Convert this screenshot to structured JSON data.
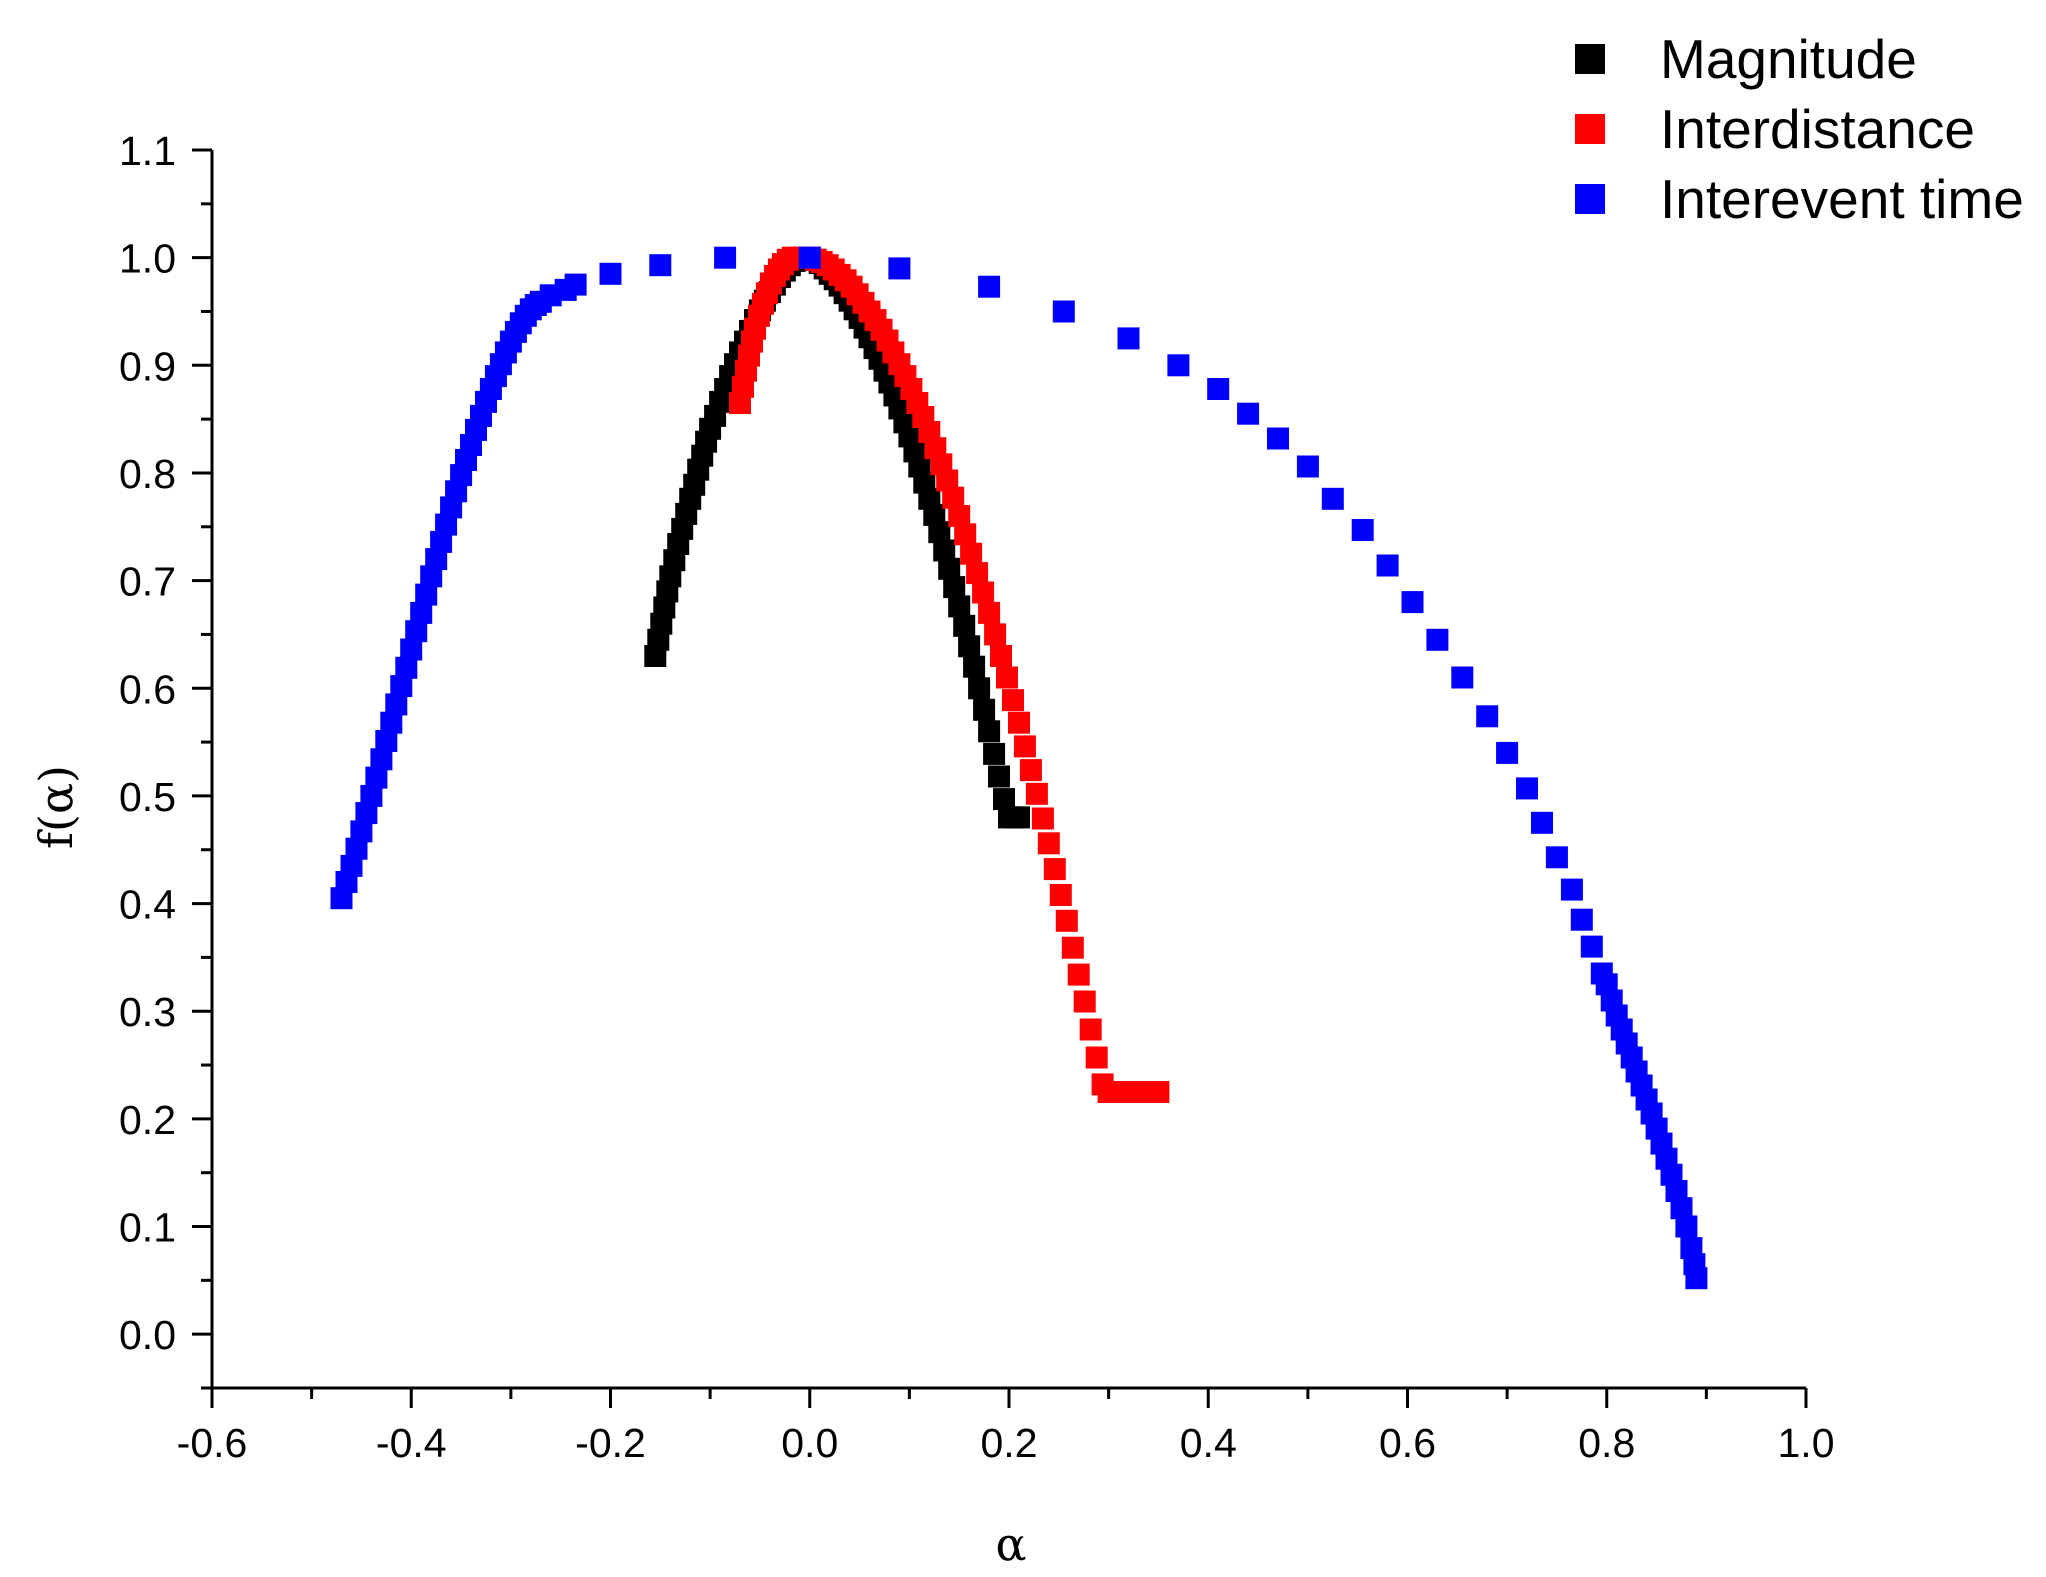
{
  "chart_data": {
    "type": "scatter",
    "xlabel": "α",
    "ylabel": "f(α)",
    "xlim": [
      -0.6,
      1.0
    ],
    "ylim": [
      -0.05,
      1.1
    ],
    "xticks": [
      "-0.6",
      "-0.4",
      "-0.2",
      "0.0",
      "0.2",
      "0.4",
      "0.6",
      "0.8",
      "1.0"
    ],
    "yticks": [
      "0.0",
      "0.1",
      "0.2",
      "0.3",
      "0.4",
      "0.5",
      "0.6",
      "0.7",
      "0.8",
      "0.9",
      "1.0",
      "1.1"
    ],
    "grid": false,
    "legend_position": "top-right",
    "marker": "square",
    "series": [
      {
        "name": "Magnitude",
        "color": "#000000",
        "points": [
          [
            -0.155,
            0.63
          ],
          [
            -0.152,
            0.645
          ],
          [
            -0.149,
            0.66
          ],
          [
            -0.146,
            0.675
          ],
          [
            -0.143,
            0.69
          ],
          [
            -0.14,
            0.704
          ],
          [
            -0.136,
            0.719
          ],
          [
            -0.132,
            0.734
          ],
          [
            -0.128,
            0.748
          ],
          [
            -0.124,
            0.762
          ],
          [
            -0.12,
            0.776
          ],
          [
            -0.116,
            0.789
          ],
          [
            -0.112,
            0.803
          ],
          [
            -0.108,
            0.816
          ],
          [
            -0.104,
            0.829
          ],
          [
            -0.1,
            0.841
          ],
          [
            -0.095,
            0.853
          ],
          [
            -0.09,
            0.866
          ],
          [
            -0.085,
            0.878
          ],
          [
            -0.08,
            0.89
          ],
          [
            -0.075,
            0.901
          ],
          [
            -0.07,
            0.912
          ],
          [
            -0.065,
            0.922
          ],
          [
            -0.06,
            0.932
          ],
          [
            -0.055,
            0.942
          ],
          [
            -0.05,
            0.951
          ],
          [
            -0.045,
            0.96
          ],
          [
            -0.04,
            0.968
          ],
          [
            -0.035,
            0.975
          ],
          [
            -0.03,
            0.982
          ],
          [
            -0.025,
            0.988
          ],
          [
            -0.02,
            0.993
          ],
          [
            -0.015,
            0.997
          ],
          [
            -0.01,
            0.999
          ],
          [
            -0.005,
            1.0
          ],
          [
            0.0,
            1.0
          ],
          [
            0.005,
            0.998
          ],
          [
            0.01,
            0.995
          ],
          [
            0.015,
            0.99
          ],
          [
            0.02,
            0.985
          ],
          [
            0.025,
            0.98
          ],
          [
            0.03,
            0.974
          ],
          [
            0.035,
            0.967
          ],
          [
            0.04,
            0.96
          ],
          [
            0.045,
            0.952
          ],
          [
            0.05,
            0.944
          ],
          [
            0.055,
            0.935
          ],
          [
            0.06,
            0.926
          ],
          [
            0.065,
            0.916
          ],
          [
            0.07,
            0.906
          ],
          [
            0.075,
            0.895
          ],
          [
            0.08,
            0.884
          ],
          [
            0.085,
            0.872
          ],
          [
            0.09,
            0.86
          ],
          [
            0.095,
            0.847
          ],
          [
            0.1,
            0.834
          ],
          [
            0.105,
            0.82
          ],
          [
            0.11,
            0.806
          ],
          [
            0.115,
            0.791
          ],
          [
            0.12,
            0.776
          ],
          [
            0.125,
            0.761
          ],
          [
            0.13,
            0.745
          ],
          [
            0.135,
            0.728
          ],
          [
            0.14,
            0.711
          ],
          [
            0.145,
            0.694
          ],
          [
            0.15,
            0.676
          ],
          [
            0.155,
            0.658
          ],
          [
            0.16,
            0.639
          ],
          [
            0.165,
            0.62
          ],
          [
            0.17,
            0.6
          ],
          [
            0.175,
            0.58
          ],
          [
            0.18,
            0.56
          ],
          [
            0.185,
            0.539
          ],
          [
            0.19,
            0.518
          ],
          [
            0.195,
            0.497
          ],
          [
            0.2,
            0.48
          ],
          [
            0.205,
            0.48
          ],
          [
            0.21,
            0.48
          ]
        ]
      },
      {
        "name": "Interdistance",
        "color": "#ff0000",
        "points": [
          [
            -0.07,
            0.865
          ],
          [
            -0.067,
            0.88
          ],
          [
            -0.064,
            0.895
          ],
          [
            -0.061,
            0.909
          ],
          [
            -0.058,
            0.922
          ],
          [
            -0.055,
            0.934
          ],
          [
            -0.051,
            0.946
          ],
          [
            -0.047,
            0.957
          ],
          [
            -0.043,
            0.967
          ],
          [
            -0.039,
            0.976
          ],
          [
            -0.035,
            0.983
          ],
          [
            -0.031,
            0.989
          ],
          [
            -0.027,
            0.994
          ],
          [
            -0.022,
            0.998
          ],
          [
            -0.017,
            1.0
          ],
          [
            -0.011,
            1.0
          ],
          [
            -0.005,
            1.0
          ],
          [
            0.0,
            1.0
          ],
          [
            0.006,
            0.998
          ],
          [
            0.012,
            0.996
          ],
          [
            0.018,
            0.993
          ],
          [
            0.024,
            0.989
          ],
          [
            0.03,
            0.984
          ],
          [
            0.036,
            0.979
          ],
          [
            0.042,
            0.973
          ],
          [
            0.048,
            0.966
          ],
          [
            0.054,
            0.958
          ],
          [
            0.06,
            0.95
          ],
          [
            0.066,
            0.942
          ],
          [
            0.072,
            0.933
          ],
          [
            0.078,
            0.923
          ],
          [
            0.084,
            0.912
          ],
          [
            0.09,
            0.901
          ],
          [
            0.096,
            0.89
          ],
          [
            0.102,
            0.878
          ],
          [
            0.108,
            0.865
          ],
          [
            0.114,
            0.852
          ],
          [
            0.12,
            0.838
          ],
          [
            0.126,
            0.823
          ],
          [
            0.132,
            0.808
          ],
          [
            0.138,
            0.793
          ],
          [
            0.144,
            0.777
          ],
          [
            0.15,
            0.76
          ],
          [
            0.156,
            0.743
          ],
          [
            0.162,
            0.725
          ],
          [
            0.168,
            0.707
          ],
          [
            0.174,
            0.689
          ],
          [
            0.18,
            0.67
          ],
          [
            0.186,
            0.65
          ],
          [
            0.192,
            0.63
          ],
          [
            0.198,
            0.61
          ],
          [
            0.204,
            0.589
          ],
          [
            0.21,
            0.568
          ],
          [
            0.216,
            0.546
          ],
          [
            0.222,
            0.524
          ],
          [
            0.228,
            0.502
          ],
          [
            0.234,
            0.479
          ],
          [
            0.24,
            0.456
          ],
          [
            0.246,
            0.432
          ],
          [
            0.252,
            0.408
          ],
          [
            0.258,
            0.384
          ],
          [
            0.264,
            0.359
          ],
          [
            0.27,
            0.334
          ],
          [
            0.276,
            0.309
          ],
          [
            0.282,
            0.283
          ],
          [
            0.288,
            0.257
          ],
          [
            0.294,
            0.232
          ],
          [
            0.3,
            0.225
          ],
          [
            0.306,
            0.225
          ],
          [
            0.312,
            0.225
          ],
          [
            0.318,
            0.225
          ],
          [
            0.324,
            0.225
          ],
          [
            0.33,
            0.225
          ],
          [
            0.335,
            0.225
          ],
          [
            0.34,
            0.225
          ],
          [
            0.345,
            0.225
          ],
          [
            0.35,
            0.225
          ]
        ]
      },
      {
        "name": "Interevent time",
        "color": "#0000ff",
        "points": [
          [
            -0.47,
            0.405
          ],
          [
            -0.465,
            0.42
          ],
          [
            -0.46,
            0.435
          ],
          [
            -0.455,
            0.451
          ],
          [
            -0.45,
            0.467
          ],
          [
            -0.445,
            0.484
          ],
          [
            -0.44,
            0.5
          ],
          [
            -0.435,
            0.517
          ],
          [
            -0.43,
            0.534
          ],
          [
            -0.425,
            0.551
          ],
          [
            -0.42,
            0.568
          ],
          [
            -0.415,
            0.585
          ],
          [
            -0.41,
            0.602
          ],
          [
            -0.405,
            0.619
          ],
          [
            -0.4,
            0.636
          ],
          [
            -0.395,
            0.653
          ],
          [
            -0.39,
            0.67
          ],
          [
            -0.385,
            0.687
          ],
          [
            -0.38,
            0.704
          ],
          [
            -0.375,
            0.72
          ],
          [
            -0.37,
            0.736
          ],
          [
            -0.365,
            0.752
          ],
          [
            -0.36,
            0.768
          ],
          [
            -0.355,
            0.783
          ],
          [
            -0.35,
            0.798
          ],
          [
            -0.345,
            0.812
          ],
          [
            -0.34,
            0.826
          ],
          [
            -0.335,
            0.84
          ],
          [
            -0.33,
            0.853
          ],
          [
            -0.325,
            0.866
          ],
          [
            -0.32,
            0.878
          ],
          [
            -0.315,
            0.89
          ],
          [
            -0.31,
            0.901
          ],
          [
            -0.305,
            0.912
          ],
          [
            -0.3,
            0.922
          ],
          [
            -0.295,
            0.931
          ],
          [
            -0.29,
            0.939
          ],
          [
            -0.285,
            0.946
          ],
          [
            -0.28,
            0.952
          ],
          [
            -0.275,
            0.956
          ],
          [
            -0.27,
            0.959
          ],
          [
            -0.26,
            0.965
          ],
          [
            -0.245,
            0.97
          ],
          [
            -0.235,
            0.975
          ],
          [
            -0.2,
            0.985
          ],
          [
            -0.15,
            0.993
          ],
          [
            -0.085,
            1.0
          ],
          [
            0.0,
            1.0
          ],
          [
            0.09,
            0.99
          ],
          [
            0.18,
            0.973
          ],
          [
            0.255,
            0.95
          ],
          [
            0.32,
            0.925
          ],
          [
            0.37,
            0.9
          ],
          [
            0.41,
            0.878
          ],
          [
            0.44,
            0.855
          ],
          [
            0.47,
            0.832
          ],
          [
            0.5,
            0.806
          ],
          [
            0.525,
            0.776
          ],
          [
            0.555,
            0.747
          ],
          [
            0.58,
            0.714
          ],
          [
            0.605,
            0.68
          ],
          [
            0.63,
            0.645
          ],
          [
            0.655,
            0.61
          ],
          [
            0.68,
            0.574
          ],
          [
            0.7,
            0.54
          ],
          [
            0.72,
            0.507
          ],
          [
            0.735,
            0.475
          ],
          [
            0.75,
            0.443
          ],
          [
            0.765,
            0.413
          ],
          [
            0.775,
            0.385
          ],
          [
            0.785,
            0.36
          ],
          [
            0.795,
            0.335
          ],
          [
            0.8,
            0.325
          ],
          [
            0.805,
            0.31
          ],
          [
            0.81,
            0.296
          ],
          [
            0.815,
            0.283
          ],
          [
            0.82,
            0.27
          ],
          [
            0.825,
            0.257
          ],
          [
            0.83,
            0.244
          ],
          [
            0.835,
            0.231
          ],
          [
            0.84,
            0.218
          ],
          [
            0.845,
            0.205
          ],
          [
            0.85,
            0.191
          ],
          [
            0.855,
            0.177
          ],
          [
            0.86,
            0.163
          ],
          [
            0.865,
            0.148
          ],
          [
            0.87,
            0.133
          ],
          [
            0.875,
            0.117
          ],
          [
            0.88,
            0.1
          ],
          [
            0.885,
            0.08
          ],
          [
            0.888,
            0.065
          ],
          [
            0.89,
            0.052
          ]
        ]
      }
    ]
  }
}
